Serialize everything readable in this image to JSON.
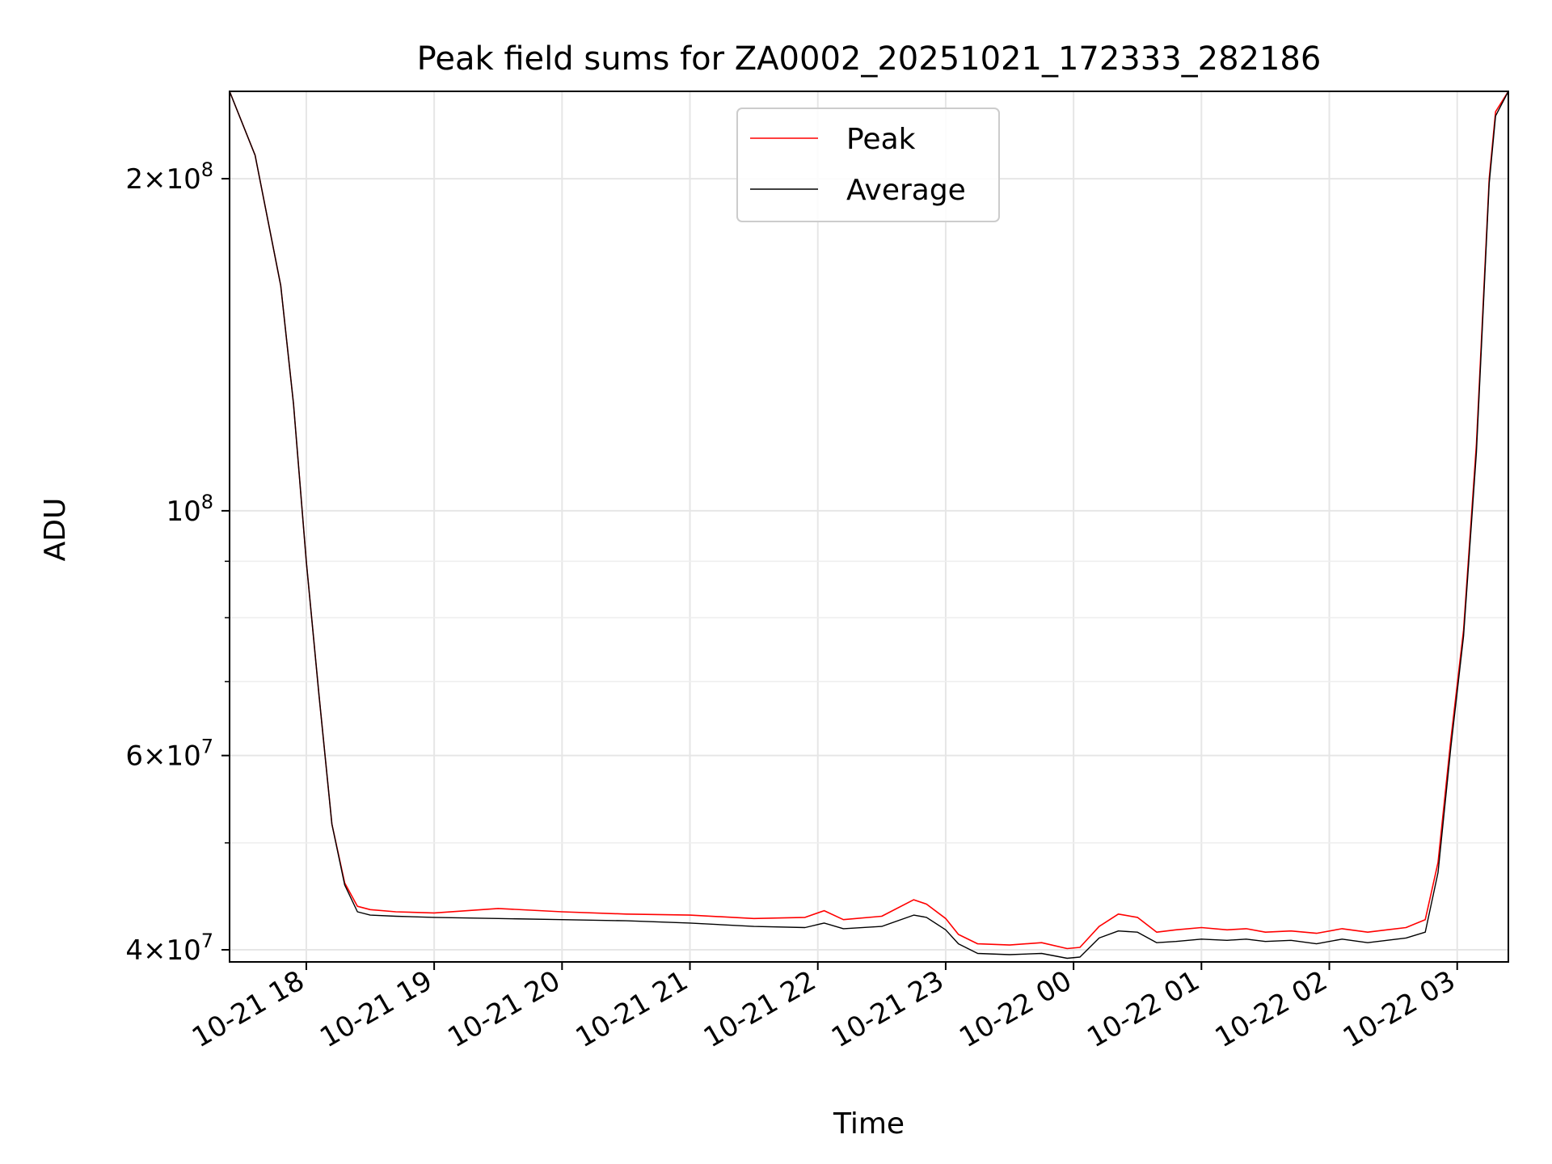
{
  "chart_data": {
    "type": "line",
    "title": "Peak field sums for ZA0002_20251021_172333_282186",
    "xlabel": "Time",
    "ylabel": "ADU",
    "yscale": "log",
    "ylim": [
      39000000,
      240000000
    ],
    "xlim_hours": [
      -0.6,
      9.4
    ],
    "x_unit": "hours since 10-21 18:00",
    "grid": true,
    "legend_position": "upper center",
    "x_tick_labels": [
      "10-21 18",
      "10-21 19",
      "10-21 20",
      "10-21 21",
      "10-21 22",
      "10-21 23",
      "10-22 00",
      "10-22 01",
      "10-22 02",
      "10-22 03"
    ],
    "x_tick_hours": [
      0,
      1,
      2,
      3,
      4,
      5,
      6,
      7,
      8,
      9
    ],
    "y_major_ticks": [
      {
        "value": 40000000,
        "mantissa": "4",
        "exponent": "7"
      },
      {
        "value": 60000000,
        "mantissa": "6",
        "exponent": "7"
      },
      {
        "value": 100000000,
        "mantissa": "",
        "exponent": "8"
      },
      {
        "value": 200000000,
        "mantissa": "2",
        "exponent": "8"
      }
    ],
    "y_minor_ticks": [
      50000000,
      70000000,
      80000000,
      90000000
    ],
    "series": [
      {
        "name": "Peak",
        "color": "#ff0000",
        "hours": [
          -0.6,
          -0.4,
          -0.2,
          -0.1,
          0.0,
          0.1,
          0.2,
          0.3,
          0.4,
          0.5,
          0.7,
          1.0,
          1.5,
          2.0,
          2.5,
          3.0,
          3.5,
          3.9,
          4.05,
          4.2,
          4.5,
          4.75,
          4.85,
          5.0,
          5.1,
          5.25,
          5.5,
          5.75,
          5.95,
          6.05,
          6.2,
          6.35,
          6.5,
          6.65,
          6.8,
          7.0,
          7.2,
          7.35,
          7.5,
          7.7,
          7.9,
          8.1,
          8.3,
          8.45,
          8.6,
          8.75,
          8.85,
          8.95,
          9.05,
          9.15,
          9.25,
          9.3,
          9.4
        ],
        "values": [
          240000000,
          210000000,
          160000000,
          125000000,
          90000000,
          68000000,
          52000000,
          46000000,
          43800000,
          43500000,
          43300000,
          43200000,
          43600000,
          43300000,
          43100000,
          43000000,
          42700000,
          42800000,
          43400000,
          42600000,
          42900000,
          44400000,
          44000000,
          42700000,
          41300000,
          40500000,
          40400000,
          40600000,
          40100000,
          40200000,
          42000000,
          43100000,
          42800000,
          41500000,
          41700000,
          41900000,
          41700000,
          41800000,
          41500000,
          41600000,
          41400000,
          41800000,
          41500000,
          41700000,
          41900000,
          42600000,
          48000000,
          62000000,
          78000000,
          115000000,
          200000000,
          230000000,
          240000000
        ]
      },
      {
        "name": "Average",
        "color": "#000000",
        "hours": [
          -0.6,
          -0.4,
          -0.2,
          -0.1,
          0.0,
          0.1,
          0.2,
          0.3,
          0.4,
          0.5,
          0.7,
          1.0,
          1.5,
          2.0,
          2.5,
          3.0,
          3.5,
          3.9,
          4.05,
          4.2,
          4.5,
          4.75,
          4.85,
          5.0,
          5.1,
          5.25,
          5.5,
          5.75,
          5.95,
          6.05,
          6.2,
          6.35,
          6.5,
          6.65,
          6.8,
          7.0,
          7.2,
          7.35,
          7.5,
          7.7,
          7.9,
          8.1,
          8.3,
          8.45,
          8.6,
          8.75,
          8.85,
          8.95,
          9.05,
          9.15,
          9.25,
          9.3,
          9.4
        ],
        "values": [
          240000000,
          210000000,
          160000000,
          125000000,
          90000000,
          68000000,
          52000000,
          45800000,
          43300000,
          43000000,
          42900000,
          42800000,
          42700000,
          42600000,
          42500000,
          42300000,
          42000000,
          41900000,
          42300000,
          41800000,
          42000000,
          43000000,
          42800000,
          41700000,
          40500000,
          39700000,
          39600000,
          39700000,
          39300000,
          39400000,
          41000000,
          41600000,
          41500000,
          40600000,
          40700000,
          40900000,
          40800000,
          40900000,
          40700000,
          40800000,
          40500000,
          40900000,
          40600000,
          40800000,
          41000000,
          41500000,
          47000000,
          61000000,
          77000000,
          113000000,
          198000000,
          228000000,
          240000000
        ]
      }
    ]
  }
}
